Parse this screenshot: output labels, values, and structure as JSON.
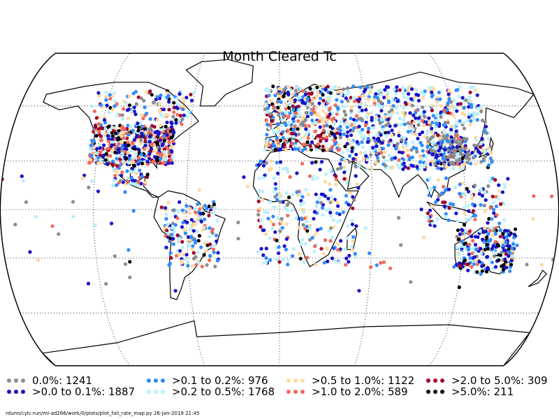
{
  "title": "Month Cleared Tc",
  "legend": [
    {
      "label": "0.0%: 1241",
      "color": "#8c8c8c"
    },
    {
      "label": ">0.0 to 0.1%: 1887",
      "color": "#1a10c8"
    },
    {
      "label": ">0.1 to 0.2%: 976",
      "color": "#2f8cff"
    },
    {
      "label": ">0.2 to 0.5%: 1768",
      "color": "#b8f0ff"
    },
    {
      "label": ">0.5 to 1.0%: 1122",
      "color": "#ffd9a0"
    },
    {
      "label": ">1.0 to 2.0%: 589",
      "color": "#f06a5a"
    },
    {
      "label": ">2.0 to 5.0%: 309",
      "color": "#a0002a"
    },
    {
      "label": ">5.0%: 211",
      "color": "#000000"
    }
  ],
  "footer": "rdunn/cylc-run/mi-ad266/work/0/plots/plot_fail_rate_map.py   26-Jan-2019 21:45"
}
